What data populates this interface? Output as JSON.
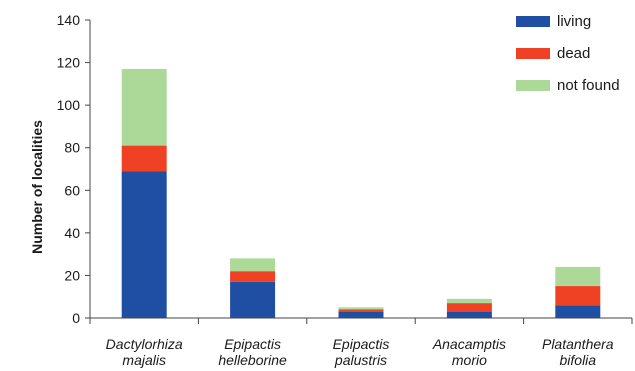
{
  "chart_data": {
    "type": "bar",
    "stacked": true,
    "title": "",
    "xlabel": "",
    "ylabel": "Number of localities",
    "ylim": [
      0,
      140
    ],
    "yticks": [
      0,
      20,
      40,
      60,
      80,
      100,
      120,
      140
    ],
    "grid": false,
    "legend_position": "top-right",
    "categories": [
      [
        "Dactylorhiza",
        "majalis"
      ],
      [
        "Epipactis",
        "helleborine"
      ],
      [
        "Epipactis",
        "palustris"
      ],
      [
        "Anacamptis",
        "morio"
      ],
      [
        "Platanthera",
        "bifolia"
      ]
    ],
    "series": [
      {
        "name": "living",
        "color": "#1f4fa3",
        "values": [
          69,
          17,
          3,
          3,
          6
        ]
      },
      {
        "name": "dead",
        "color": "#ef4123",
        "values": [
          12,
          5,
          1,
          4,
          9
        ]
      },
      {
        "name": "not found",
        "color": "#acd898",
        "values": [
          36,
          6,
          1,
          2,
          9
        ]
      }
    ]
  }
}
